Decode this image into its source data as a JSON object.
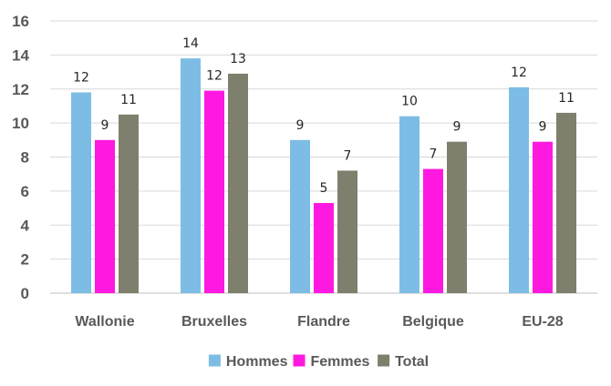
{
  "chart_data": {
    "type": "bar",
    "title": "",
    "xlabel": "",
    "ylabel": "",
    "categories": [
      "Wallonie",
      "Bruxelles",
      "Flandre",
      "Belgique",
      "EU-28"
    ],
    "series": [
      {
        "name": "Hommes",
        "color": "#7dbde5",
        "values": [
          11.8,
          13.8,
          9.0,
          10.4,
          12.1
        ],
        "labels": [
          "12",
          "14",
          "9",
          "10",
          "12"
        ]
      },
      {
        "name": "Femmes",
        "color": "#ff19e0",
        "values": [
          9.0,
          11.9,
          5.3,
          7.3,
          8.9
        ],
        "labels": [
          "9",
          "12",
          "5",
          "7",
          "9"
        ]
      },
      {
        "name": "Total",
        "color": "#7f7f6d",
        "values": [
          10.5,
          12.9,
          7.2,
          8.9,
          10.6
        ],
        "labels": [
          "11",
          "13",
          "7",
          "9",
          "11"
        ]
      }
    ],
    "ylim": [
      0,
      16
    ],
    "yticks": [
      0,
      2,
      4,
      6,
      8,
      10,
      12,
      14,
      16
    ],
    "grid": true,
    "legend_position": "bottom-center"
  }
}
